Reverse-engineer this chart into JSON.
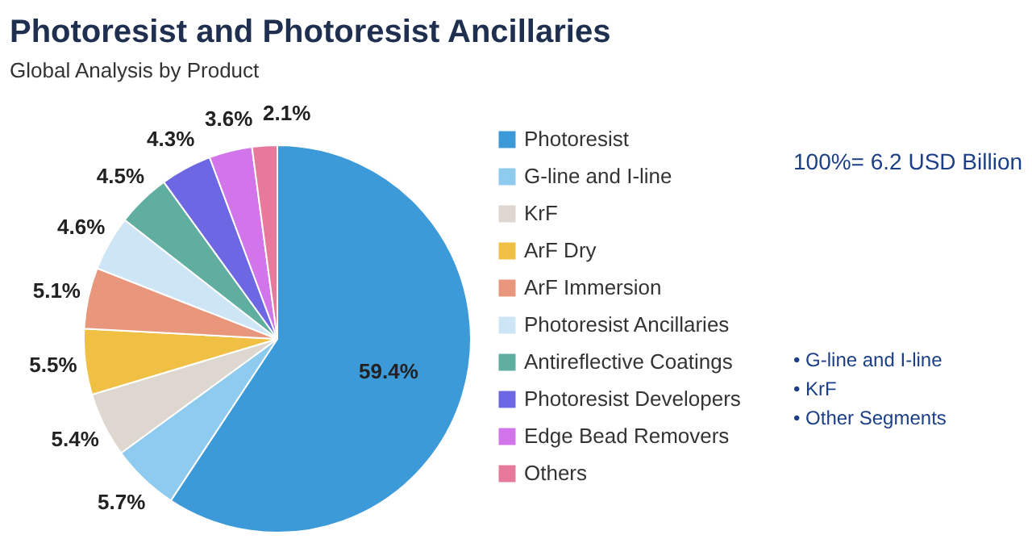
{
  "chart_data": {
    "type": "pie",
    "title": "Photoresist and Photoresist Ancillaries",
    "subtitle": "Global Analysis by Product",
    "categories": [
      "Photoresist",
      "G-line and I-line",
      "KrF",
      "ArF Dry",
      "ArF Immersion",
      "Photoresist Ancillaries",
      "Antireflective Coatings",
      "Photoresist Developers",
      "Edge Bead Removers",
      "Others"
    ],
    "values": [
      59.4,
      5.7,
      5.4,
      5.5,
      5.1,
      4.6,
      4.5,
      4.3,
      3.6,
      2.1
    ],
    "value_labels": [
      "59.4%",
      "5.7%",
      "5.4%",
      "5.5%",
      "5.1%",
      "4.6%",
      "4.5%",
      "4.3%",
      "3.6%",
      "2.1%"
    ],
    "colors": [
      "#3d9ad8",
      "#8ecbef",
      "#ddd7cf",
      "#efc043",
      "#e9977c",
      "#cde5f5",
      "#5fae9f",
      "#6d67e3",
      "#d274ea",
      "#e77a9b"
    ],
    "legend": "right",
    "annotations": [
      "100%= 6.2 USD Billion",
      "• G-line and I-line",
      "• KrF",
      "• Other Segments"
    ]
  }
}
